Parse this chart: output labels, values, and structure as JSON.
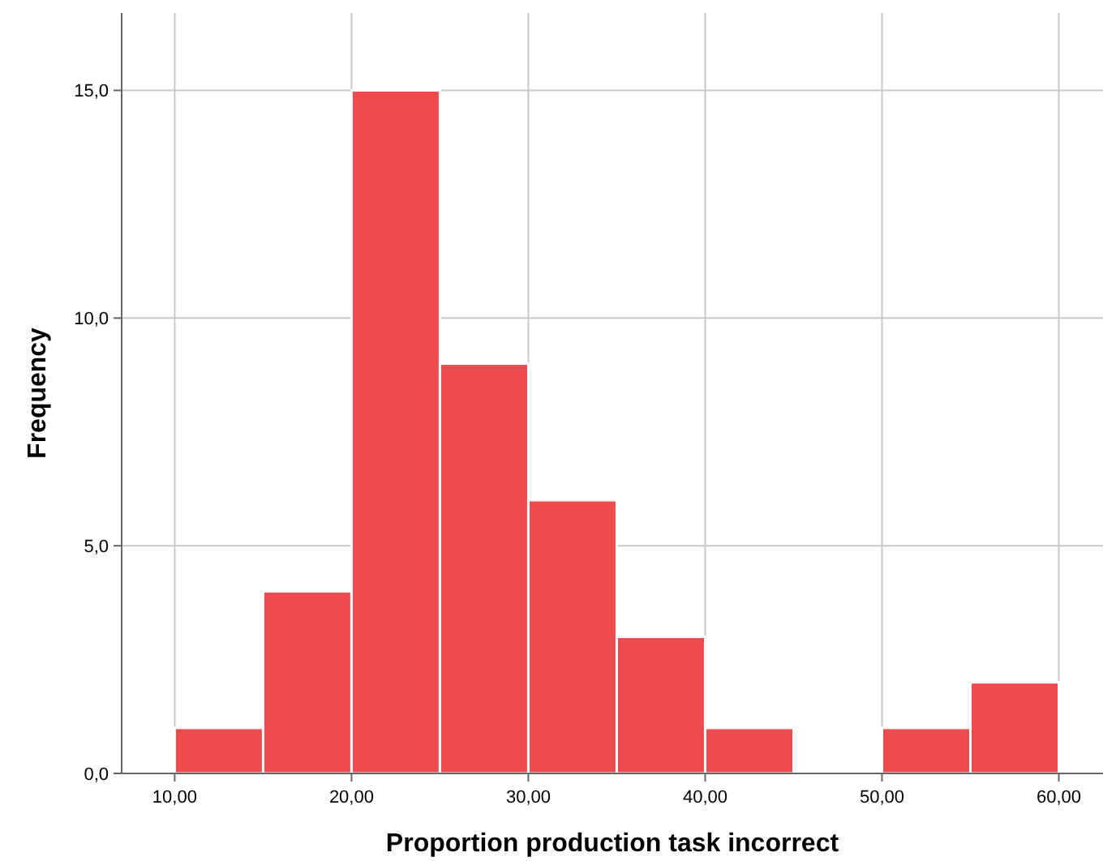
{
  "chart_data": {
    "type": "histogram",
    "xlabel": "Proportion production task incorrect",
    "ylabel": "Frequency",
    "bins": [
      10,
      15,
      20,
      25,
      30,
      35,
      40,
      45,
      50,
      55,
      60
    ],
    "values": [
      1,
      4,
      15,
      9,
      6,
      3,
      1,
      0,
      1,
      2
    ],
    "color": "#ee4b4e",
    "xlim": [
      7,
      62.5
    ],
    "ylim": [
      0,
      16.7
    ],
    "xticks": [
      {
        "value": 10,
        "label": "10,00"
      },
      {
        "value": 20,
        "label": "20,00"
      },
      {
        "value": 30,
        "label": "30,00"
      },
      {
        "value": 40,
        "label": "40,00"
      },
      {
        "value": 50,
        "label": "50,00"
      },
      {
        "value": 60,
        "label": "60,00"
      }
    ],
    "yticks": [
      {
        "value": 0,
        "label": "0,0"
      },
      {
        "value": 5,
        "label": "5,0"
      },
      {
        "value": 10,
        "label": "10,0"
      },
      {
        "value": 15,
        "label": "15,0"
      }
    ],
    "grid": true
  }
}
